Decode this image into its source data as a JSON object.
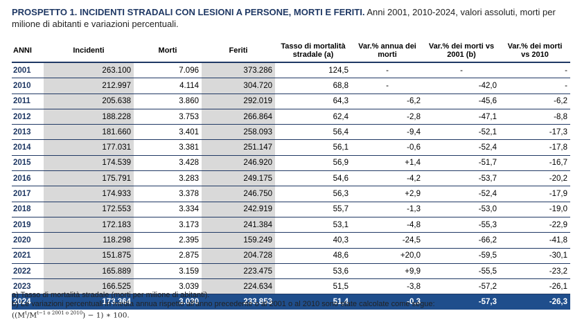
{
  "title": {
    "bold": "PROSPETTO 1. INCIDENTI STRADALI CON LESIONI A PERSONE, MORTI E FERITI.",
    "rest": " Anni 2001, 2010-2024, valori assoluti, morti per milione di abitanti e variazioni percentuali."
  },
  "table": {
    "headers": [
      "ANNI",
      "Incidenti",
      "Morti",
      "Feriti",
      "Tasso di mortalità stradale (a)",
      "Var.% annua dei morti",
      "Var.% dei morti vs 2001 (b)",
      "Var.% dei morti vs 2010"
    ],
    "rows": [
      [
        "2001",
        "263.100",
        "7.096",
        "373.286",
        "124,5",
        "-",
        "-",
        "-"
      ],
      [
        "2010",
        "212.997",
        "4.114",
        "304.720",
        "68,8",
        "-",
        "-42,0",
        "-"
      ],
      [
        "2011",
        "205.638",
        "3.860",
        "292.019",
        "64,3",
        "-6,2",
        "-45,6",
        "-6,2"
      ],
      [
        "2012",
        "188.228",
        "3.753",
        "266.864",
        "62,4",
        "-2,8",
        "-47,1",
        "-8,8"
      ],
      [
        "2013",
        "181.660",
        "3.401",
        "258.093",
        "56,4",
        "-9,4",
        "-52,1",
        "-17,3"
      ],
      [
        "2014",
        "177.031",
        "3.381",
        "251.147",
        "56,1",
        "-0,6",
        "-52,4",
        "-17,8"
      ],
      [
        "2015",
        "174.539",
        "3.428",
        "246.920",
        "56,9",
        "+1,4",
        "-51,7",
        "-16,7"
      ],
      [
        "2016",
        "175.791",
        "3.283",
        "249.175",
        "54,6",
        "-4,2",
        "-53,7",
        "-20,2"
      ],
      [
        "2017",
        "174.933",
        "3.378",
        "246.750",
        "56,3",
        "+2,9",
        "-52,4",
        "-17,9"
      ],
      [
        "2018",
        "172.553",
        "3.334",
        "242.919",
        "55,7",
        "-1,3",
        "-53,0",
        "-19,0"
      ],
      [
        "2019",
        "172.183",
        "3.173",
        "241.384",
        "53,1",
        "-4,8",
        "-55,3",
        "-22,9"
      ],
      [
        "2020",
        "118.298",
        "2.395",
        "159.249",
        "40,3",
        "-24,5",
        "-66,2",
        "-41,8"
      ],
      [
        "2021",
        "151.875",
        "2.875",
        "204.728",
        "48,6",
        "+20,0",
        "-59,5",
        "-30,1"
      ],
      [
        "2022",
        "165.889",
        "3.159",
        "223.475",
        "53,6",
        "+9,9",
        "-55,5",
        "-23,2"
      ],
      [
        "2023",
        "166.525",
        "3.039",
        "224.634",
        "51,5",
        "-3,8",
        "-57,2",
        "-26,1"
      ],
      [
        "2024",
        "173.364",
        "3.030",
        "233.853",
        "51,4",
        "-0,3",
        "-57,3",
        "-26,3"
      ]
    ]
  },
  "notes": {
    "a": "a) Tasso di mortalità stradale (morti per milione di abitanti).",
    "b": "b) Le variazioni percentuali in media annua rispetto all'anno precedente o al 2001 o al 2010 sono state calcolate come segue:",
    "formula_open": "((M",
    "formula_sup1": "t",
    "formula_mid": "/M",
    "formula_sup2": "t−1 o 2001 o 2010",
    "formula_close": ") − 1) ∗ 100."
  },
  "colors": {
    "accent": "#1f3864",
    "highlight": "#1f4e8c",
    "shade": "#d9d9d9"
  }
}
